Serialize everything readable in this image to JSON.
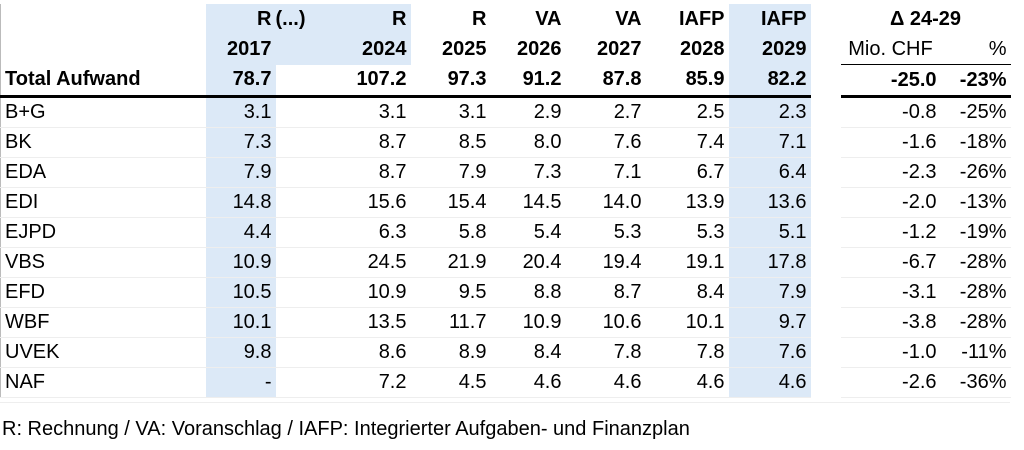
{
  "table": {
    "ellipsis": "(...)",
    "types": [
      "R",
      "R",
      "R",
      "VA",
      "VA",
      "IAFP",
      "IAFP"
    ],
    "years": [
      "2017",
      "2024",
      "2025",
      "2026",
      "2027",
      "2028",
      "2029"
    ],
    "delta_title": "Δ 24-29",
    "delta_units": [
      "Mio. CHF",
      "%"
    ],
    "rows": [
      [
        "Total Aufwand",
        "78.7",
        "107.2",
        "97.3",
        "91.2",
        "87.8",
        "85.9",
        "82.2",
        "-25.0",
        "-23%"
      ],
      [
        "B+G",
        "3.1",
        "3.1",
        "3.1",
        "2.9",
        "2.7",
        "2.5",
        "2.3",
        "-0.8",
        "-25%"
      ],
      [
        "BK",
        "7.3",
        "8.7",
        "8.5",
        "8.0",
        "7.6",
        "7.4",
        "7.1",
        "-1.6",
        "-18%"
      ],
      [
        "EDA",
        "7.9",
        "8.7",
        "7.9",
        "7.3",
        "7.1",
        "6.7",
        "6.4",
        "-2.3",
        "-26%"
      ],
      [
        "EDI",
        "14.8",
        "15.6",
        "15.4",
        "14.5",
        "14.0",
        "13.9",
        "13.6",
        "-2.0",
        "-13%"
      ],
      [
        "EJPD",
        "4.4",
        "6.3",
        "5.8",
        "5.4",
        "5.3",
        "5.3",
        "5.1",
        "-1.2",
        "-19%"
      ],
      [
        "VBS",
        "10.9",
        "24.5",
        "21.9",
        "20.4",
        "19.4",
        "19.1",
        "17.8",
        "-6.7",
        "-28%"
      ],
      [
        "EFD",
        "10.5",
        "10.9",
        "9.5",
        "8.8",
        "8.7",
        "8.4",
        "7.9",
        "-3.1",
        "-28%"
      ],
      [
        "WBF",
        "10.1",
        "13.5",
        "11.7",
        "10.9",
        "10.6",
        "10.1",
        "9.7",
        "-3.8",
        "-28%"
      ],
      [
        "UVEK",
        "9.8",
        "8.6",
        "8.9",
        "8.4",
        "7.8",
        "7.8",
        "7.6",
        "-1.0",
        "-11%"
      ],
      [
        "NAF",
        "-",
        "7.2",
        "4.5",
        "4.6",
        "4.6",
        "4.6",
        "4.6",
        "-2.6",
        "-36%"
      ]
    ],
    "footnote": "R: Rechnung / VA: Voranschlag / IAFP: Integrierter Aufgaben- und Finanzplan"
  }
}
